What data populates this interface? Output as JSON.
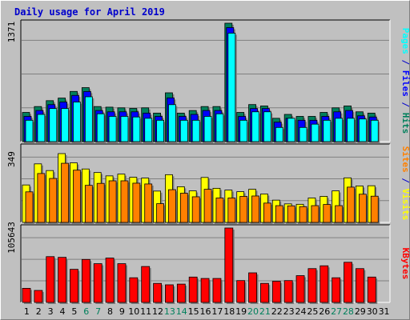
{
  "title": "Daily usage for April 2019",
  "colors": {
    "hits": "#00805c",
    "files": "#0000ff",
    "pages": "#00ffff",
    "visits": "#ffff00",
    "sites": "#ff8000",
    "kbytes": "#ff0000",
    "weekend_label": "#00805c",
    "weekday_label": "#000000",
    "separator": "#0000cc"
  },
  "chart_data": [
    {
      "type": "bar",
      "panel": "top",
      "categories": [
        "1",
        "2",
        "3",
        "4",
        "5",
        "6",
        "7",
        "8",
        "9",
        "10",
        "11",
        "12",
        "13",
        "14",
        "15",
        "16",
        "17",
        "18",
        "19",
        "20",
        "21",
        "22",
        "23",
        "24",
        "25",
        "26",
        "27",
        "28",
        "29",
        "30",
        "31"
      ],
      "weekend_days": [
        "6",
        "7",
        "13",
        "14",
        "20",
        "21",
        "27",
        "28"
      ],
      "ymax_label": "1371",
      "ylim": [
        0,
        1371
      ],
      "legend": [
        "Pages",
        "Files",
        "Hits"
      ],
      "series": [
        {
          "name": "Hits",
          "color": "#00805c",
          "values": [
            338,
            406,
            474,
            504,
            581,
            625,
            406,
            399,
            391,
            384,
            391,
            330,
            565,
            330,
            360,
            406,
            406,
            1371,
            338,
            429,
            413,
            270,
            315,
            292,
            292,
            338,
            391,
            413,
            345,
            330,
            0
          ]
        },
        {
          "name": "Files",
          "color": "#0000ff",
          "values": [
            292,
            360,
            428,
            458,
            535,
            580,
            360,
            345,
            345,
            345,
            330,
            292,
            506,
            292,
            315,
            360,
            360,
            1320,
            292,
            383,
            383,
            225,
            270,
            247,
            247,
            292,
            345,
            360,
            299,
            285,
            0
          ]
        },
        {
          "name": "Pages",
          "color": "#00ffff",
          "values": [
            247,
            315,
            383,
            383,
            458,
            519,
            322,
            292,
            292,
            285,
            270,
            247,
            428,
            247,
            247,
            292,
            322,
            1256,
            247,
            345,
            345,
            164,
            270,
            164,
            202,
            247,
            270,
            270,
            262,
            247,
            0
          ]
        }
      ]
    },
    {
      "type": "bar",
      "panel": "middle",
      "categories": [
        "1",
        "2",
        "3",
        "4",
        "5",
        "6",
        "7",
        "8",
        "9",
        "10",
        "11",
        "12",
        "13",
        "14",
        "15",
        "16",
        "17",
        "18",
        "19",
        "20",
        "21",
        "22",
        "23",
        "24",
        "25",
        "26",
        "27",
        "28",
        "29",
        "30",
        "31"
      ],
      "ymax_label": "349",
      "ylim": [
        0,
        349
      ],
      "legend": [
        "Sites",
        "Visits"
      ],
      "series": [
        {
          "name": "Visits",
          "color": "#ffff00",
          "values": [
            190,
            297,
            263,
            349,
            302,
            271,
            253,
            236,
            245,
            229,
            225,
            159,
            242,
            181,
            160,
            228,
            173,
            164,
            156,
            168,
            144,
            113,
            94,
            92,
            124,
            132,
            160,
            226,
            185,
            186,
            0
          ]
        },
        {
          "name": "Sites",
          "color": "#ff8000",
          "values": [
            155,
            248,
            223,
            300,
            265,
            188,
            198,
            211,
            211,
            199,
            195,
            95,
            166,
            148,
            130,
            168,
            124,
            124,
            132,
            134,
            98,
            85,
            84,
            80,
            85,
            91,
            85,
            179,
            143,
            133,
            0
          ]
        }
      ]
    },
    {
      "type": "bar",
      "panel": "bottom",
      "categories": [
        "1",
        "2",
        "3",
        "4",
        "5",
        "6",
        "7",
        "8",
        "9",
        "10",
        "11",
        "12",
        "13",
        "14",
        "15",
        "16",
        "17",
        "18",
        "19",
        "20",
        "21",
        "22",
        "23",
        "24",
        "25",
        "26",
        "27",
        "28",
        "29",
        "30",
        "31"
      ],
      "ymax_label": "105643",
      "ylim": [
        0,
        105643
      ],
      "legend": [
        "KBytes"
      ],
      "series": [
        {
          "name": "KBytes",
          "color": "#ff0000",
          "values": [
            20000,
            17000,
            65000,
            64000,
            47000,
            61000,
            55000,
            63000,
            55000,
            35000,
            51000,
            27000,
            25000,
            26000,
            36000,
            34000,
            34000,
            105643,
            31000,
            42000,
            27000,
            30000,
            31000,
            38000,
            48000,
            52000,
            35000,
            57000,
            48000,
            36000,
            0
          ]
        }
      ]
    }
  ]
}
